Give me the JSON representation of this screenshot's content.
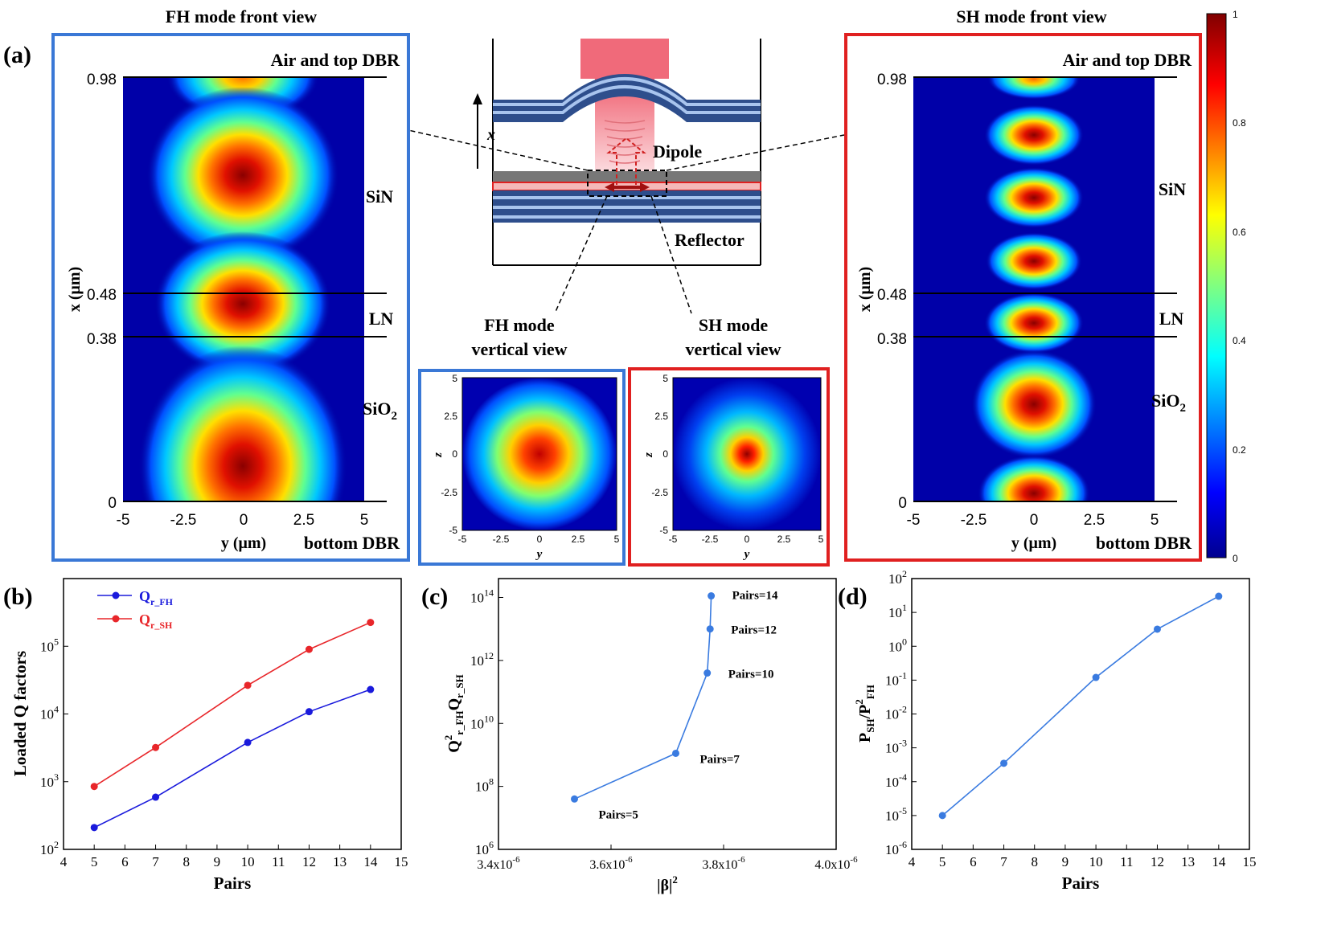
{
  "panel_a": {
    "label": "(a)",
    "fh_front": {
      "title": "FH mode front view",
      "layers": {
        "top": "Air and top DBR",
        "sin": "SiN",
        "ln": "LN",
        "sio2": "SiO",
        "sio2_sub": "2",
        "bottom": "bottom DBR"
      },
      "xlabel": "y (μm)",
      "ylabel": "x (μm)",
      "xticks": [
        "-5",
        "-2.5",
        "0",
        "2.5",
        "5"
      ],
      "yticks": [
        "0.98",
        "0.48",
        "0.38",
        "0"
      ]
    },
    "sh_front": {
      "title": "SH mode front view",
      "layers": {
        "top": "Air and top DBR",
        "sin": "SiN",
        "ln": "LN",
        "sio2": "SiO",
        "sio2_sub": "2",
        "bottom": "bottom DBR"
      },
      "xlabel": "y (μm)",
      "ylabel": "x (μm)",
      "xticks": [
        "-5",
        "-2.5",
        "0",
        "2.5",
        "5"
      ],
      "yticks": [
        "0.98",
        "0.48",
        "0.38",
        "0"
      ]
    },
    "schematic": {
      "axis": "x",
      "dipole": "Dipole",
      "reflector": "Reflector"
    },
    "fh_vertical": {
      "caption_line1": "FH mode",
      "caption_line2": "vertical view",
      "xlabel": "y",
      "ylabel": "z",
      "xticks": [
        "-5",
        "-2.5",
        "0",
        "2.5",
        "5"
      ],
      "yticks": [
        "5",
        "2.5",
        "0",
        "-2.5",
        "-5"
      ]
    },
    "sh_vertical": {
      "caption_line1": "SH mode",
      "caption_line2": "vertical view",
      "xlabel": "y",
      "ylabel": "z",
      "xticks": [
        "-5",
        "-2.5",
        "0",
        "2.5",
        "5"
      ],
      "yticks": [
        "5",
        "2.5",
        "0",
        "-2.5",
        "-5"
      ]
    },
    "colorbar": {
      "ticks": [
        "1",
        "0.8",
        "0.6",
        "0.4",
        "0.2",
        "0"
      ]
    }
  },
  "chart_data": [
    {
      "id": "b",
      "label": "(b)",
      "type": "line",
      "xlabel": "Pairs",
      "ylabel": "Loaded Q factors",
      "yscale": "log",
      "xlim": [
        4,
        15
      ],
      "ylim_exp": [
        2,
        6
      ],
      "xticks": [
        "4",
        "5",
        "6",
        "7",
        "8",
        "9",
        "10",
        "11",
        "12",
        "13",
        "14",
        "15"
      ],
      "yticks": [
        {
          "base": "10",
          "exp": "2"
        },
        {
          "base": "10",
          "exp": "3"
        },
        {
          "base": "10",
          "exp": "4"
        },
        {
          "base": "10",
          "exp": "5"
        }
      ],
      "legend": [
        {
          "main": "Q",
          "sub": "r_FH",
          "color": "#1a1adc"
        },
        {
          "main": "Q",
          "sub": "r_SH",
          "color": "#e8262a"
        }
      ],
      "series": [
        {
          "name": "Q_r_FH",
          "color": "#1a1adc",
          "x": [
            5,
            7,
            10,
            12,
            14
          ],
          "y": [
            210,
            590,
            3800,
            10800,
            23000
          ]
        },
        {
          "name": "Q_r_SH",
          "color": "#e8262a",
          "x": [
            5,
            7,
            10,
            12,
            14
          ],
          "y": [
            850,
            3200,
            26500,
            90000,
            225000
          ]
        }
      ]
    },
    {
      "id": "c",
      "label": "(c)",
      "type": "line",
      "xlabel": "|β|",
      "xlabel_sup": "2",
      "ylabel_parts": {
        "q1": "Q",
        "sup": "2",
        "sub1": "r_FH",
        "q2": "Q",
        "sub2": "r_SH"
      },
      "yscale": "log",
      "xlim": [
        3.4e-06,
        4e-06
      ],
      "ylim_exp": [
        6,
        14.6
      ],
      "xticks": [
        {
          "value": 3.4e-06,
          "text": "3.4x10",
          "exp": "-6"
        },
        {
          "value": 3.6e-06,
          "text": "3.6x10",
          "exp": "-6"
        },
        {
          "value": 3.8e-06,
          "text": "3.8x10",
          "exp": "-6"
        },
        {
          "value": 4e-06,
          "text": "4.0x10",
          "exp": "-6"
        }
      ],
      "yticks": [
        {
          "base": "10",
          "exp": "6"
        },
        {
          "base": "10",
          "exp": "8"
        },
        {
          "base": "10",
          "exp": "10"
        },
        {
          "base": "10",
          "exp": "12"
        },
        {
          "base": "10",
          "exp": "14"
        }
      ],
      "color": "#3a7be0",
      "points": [
        {
          "x": 3.535e-06,
          "log_y": 7.6,
          "label": "Pairs=5"
        },
        {
          "x": 3.715e-06,
          "log_y": 9.05,
          "label": "Pairs=7"
        },
        {
          "x": 3.771e-06,
          "log_y": 11.6,
          "label": "Pairs=10"
        },
        {
          "x": 3.776e-06,
          "log_y": 13.0,
          "label": "Pairs=12"
        },
        {
          "x": 3.778e-06,
          "log_y": 14.05,
          "label": "Pairs=14"
        }
      ]
    },
    {
      "id": "d",
      "label": "(d)",
      "type": "line",
      "xlabel": "Pairs",
      "ylabel_parts": {
        "p1": "P",
        "sub1": "SH",
        "p2": "/P",
        "sup": "2",
        "sub2": "FH"
      },
      "yscale": "log",
      "xlim": [
        4,
        15
      ],
      "ylim_exp": [
        -6,
        2
      ],
      "xticks": [
        "4",
        "5",
        "6",
        "7",
        "8",
        "9",
        "10",
        "11",
        "12",
        "13",
        "14",
        "15"
      ],
      "yticks": [
        {
          "base": "10",
          "exp": "-6"
        },
        {
          "base": "10",
          "exp": "-5"
        },
        {
          "base": "10",
          "exp": "-4"
        },
        {
          "base": "10",
          "exp": "-3"
        },
        {
          "base": "10",
          "exp": "-2"
        },
        {
          "base": "10",
          "exp": "-1"
        },
        {
          "base": "10",
          "exp": "0"
        },
        {
          "base": "10",
          "exp": "1"
        },
        {
          "base": "10",
          "exp": "2"
        }
      ],
      "color": "#3a7be0",
      "series": [
        {
          "name": "P_SH/P_FH^2",
          "x": [
            5,
            7,
            10,
            12,
            14
          ],
          "y": [
            1e-05,
            0.00035,
            0.12,
            3.2,
            30
          ]
        }
      ]
    }
  ]
}
